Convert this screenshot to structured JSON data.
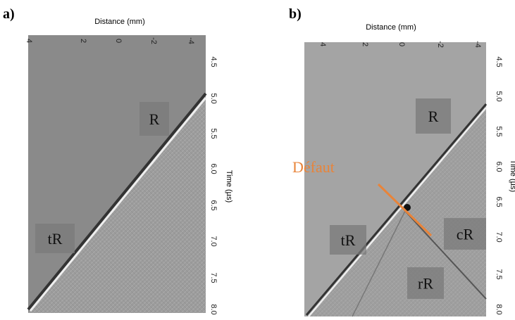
{
  "panels": [
    {
      "label": "a)",
      "x_axis_title": "Distance (mm)",
      "x_ticks": [
        "4",
        "2",
        "0",
        "-2",
        "-4"
      ],
      "y_axis_title": "Time (µs)",
      "y_ticks": [
        "4.5",
        "5.0",
        "5.5",
        "6.0",
        "6.5",
        "7.0",
        "7.5",
        "8.0"
      ],
      "annotations": [
        "R",
        "tR"
      ]
    },
    {
      "label": "b)",
      "x_axis_title": "Distance (mm)",
      "x_ticks": [
        "4",
        "2",
        "0",
        "-2",
        "-4"
      ],
      "y_axis_title": "Time (µs)",
      "y_ticks": [
        "4.5",
        "5.0",
        "5.5",
        "6.0",
        "6.5",
        "7.0",
        "7.5",
        "8.0"
      ],
      "annotations": [
        "R",
        "tR",
        "cR",
        "rR"
      ],
      "defect_label": "Défaut"
    }
  ]
}
